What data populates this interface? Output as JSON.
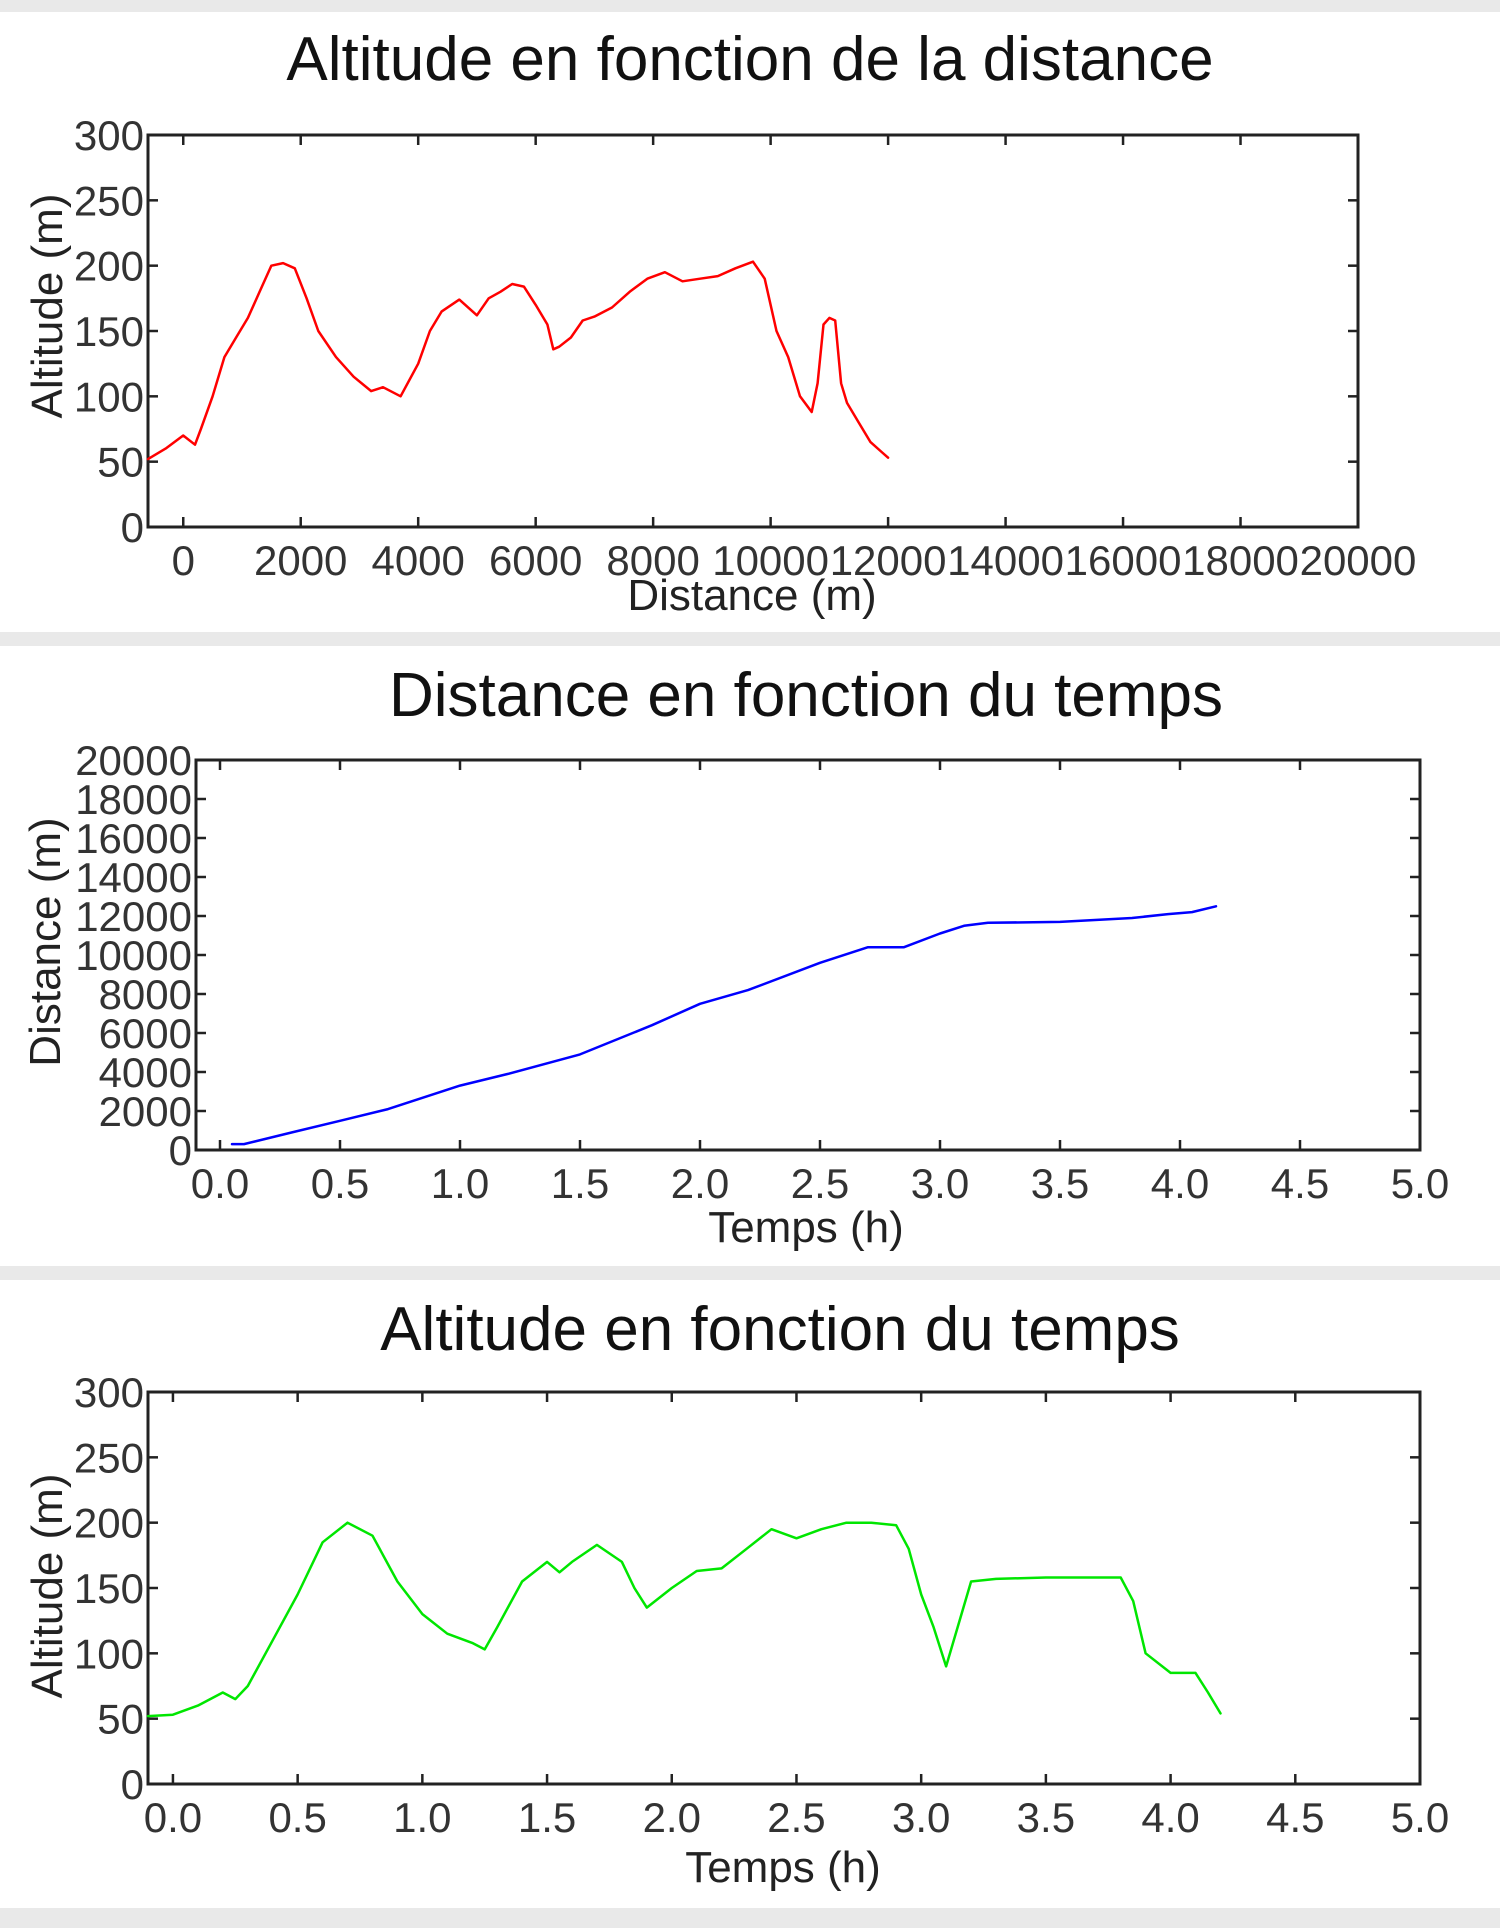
{
  "chart_data": [
    {
      "type": "line",
      "title": "Altitude en fonction de la distance",
      "xlabel": "Distance (m)",
      "ylabel": "Altitude (m)",
      "xlim": [
        -600,
        20000
      ],
      "ylim": [
        0,
        300
      ],
      "xticks": [
        "0",
        "2000",
        "4000",
        "6000",
        "8000",
        "10000",
        "12000",
        "14000",
        "16000",
        "18000",
        "20000"
      ],
      "yticks": [
        "0",
        "50",
        "100",
        "150",
        "200",
        "250",
        "300"
      ],
      "grid": false,
      "series": [
        {
          "color": "#ff0000",
          "x": [
            -600,
            -300,
            0,
            200,
            300,
            500,
            700,
            900,
            1100,
            1300,
            1500,
            1700,
            1900,
            2100,
            2300,
            2600,
            2900,
            3200,
            3400,
            3700,
            4000,
            4200,
            4400,
            4700,
            5000,
            5200,
            5400,
            5600,
            5800,
            6000,
            6200,
            6300,
            6400,
            6600,
            6800,
            7000,
            7300,
            7600,
            7900,
            8200,
            8500,
            8800,
            9100,
            9400,
            9700,
            9900,
            10100,
            10300,
            10500,
            10700,
            10800,
            10900,
            11000,
            11100,
            11200,
            11300,
            11500,
            11700,
            11900,
            12000
          ],
          "y": [
            52,
            60,
            70,
            63,
            75,
            100,
            130,
            145,
            160,
            180,
            200,
            202,
            198,
            175,
            150,
            130,
            115,
            104,
            107,
            100,
            125,
            150,
            165,
            174,
            162,
            175,
            180,
            186,
            184,
            170,
            155,
            136,
            138,
            145,
            158,
            161,
            168,
            180,
            190,
            195,
            188,
            190,
            192,
            198,
            203,
            190,
            150,
            130,
            100,
            88,
            110,
            155,
            160,
            158,
            110,
            95,
            80,
            65,
            57,
            53
          ]
        }
      ]
    },
    {
      "type": "line",
      "title": "Distance en fonction du temps",
      "xlabel": "Temps (h)",
      "ylabel": "Distance (m)",
      "xlim": [
        -0.1,
        5.0
      ],
      "ylim": [
        0,
        20000
      ],
      "xticks": [
        "0.0",
        "0.5",
        "1.0",
        "1.5",
        "2.0",
        "2.5",
        "3.0",
        "3.5",
        "4.0",
        "4.5",
        "5.0"
      ],
      "yticks": [
        "0",
        "2000",
        "4000",
        "6000",
        "8000",
        "10000",
        "12000",
        "14000",
        "16000",
        "18000",
        "20000"
      ],
      "grid": false,
      "series": [
        {
          "color": "#0000ff",
          "x": [
            0.05,
            0.1,
            0.3,
            0.5,
            0.7,
            1.0,
            1.2,
            1.5,
            1.8,
            2.0,
            2.2,
            2.5,
            2.7,
            2.85,
            3.0,
            3.1,
            3.2,
            3.5,
            3.8,
            3.95,
            4.05,
            4.15
          ],
          "y": [
            300,
            300,
            900,
            1500,
            2100,
            3300,
            3900,
            4900,
            6400,
            7500,
            8200,
            9600,
            10400,
            10400,
            11100,
            11500,
            11650,
            11700,
            11900,
            12100,
            12200,
            12500
          ]
        }
      ]
    },
    {
      "type": "line",
      "title": "Altitude en fonction du temps",
      "xlabel": "Temps (h)",
      "ylabel": "Altitude (m)",
      "xlim": [
        -0.1,
        5.0
      ],
      "ylim": [
        0,
        300
      ],
      "xticks": [
        "0.0",
        "0.5",
        "1.0",
        "1.5",
        "2.0",
        "2.5",
        "3.0",
        "3.5",
        "4.0",
        "4.5",
        "5.0"
      ],
      "yticks": [
        "0",
        "50",
        "100",
        "150",
        "200",
        "250",
        "300"
      ],
      "grid": false,
      "series": [
        {
          "color": "#00e600",
          "x": [
            -0.1,
            0.0,
            0.1,
            0.2,
            0.25,
            0.3,
            0.4,
            0.5,
            0.6,
            0.7,
            0.8,
            0.9,
            1.0,
            1.1,
            1.2,
            1.25,
            1.3,
            1.4,
            1.5,
            1.55,
            1.6,
            1.7,
            1.8,
            1.85,
            1.9,
            2.0,
            2.1,
            2.2,
            2.3,
            2.4,
            2.5,
            2.6,
            2.7,
            2.8,
            2.9,
            2.95,
            3.0,
            3.05,
            3.1,
            3.2,
            3.3,
            3.5,
            3.7,
            3.8,
            3.85,
            3.9,
            4.0,
            4.1,
            4.15,
            4.2
          ],
          "y": [
            52,
            53,
            60,
            70,
            65,
            75,
            110,
            145,
            185,
            200,
            190,
            155,
            130,
            115,
            108,
            103,
            120,
            155,
            170,
            162,
            170,
            183,
            170,
            150,
            135,
            150,
            163,
            165,
            180,
            195,
            188,
            195,
            200,
            200,
            198,
            180,
            145,
            120,
            90,
            155,
            157,
            158,
            158,
            158,
            140,
            100,
            85,
            85,
            70,
            54
          ]
        }
      ]
    }
  ]
}
